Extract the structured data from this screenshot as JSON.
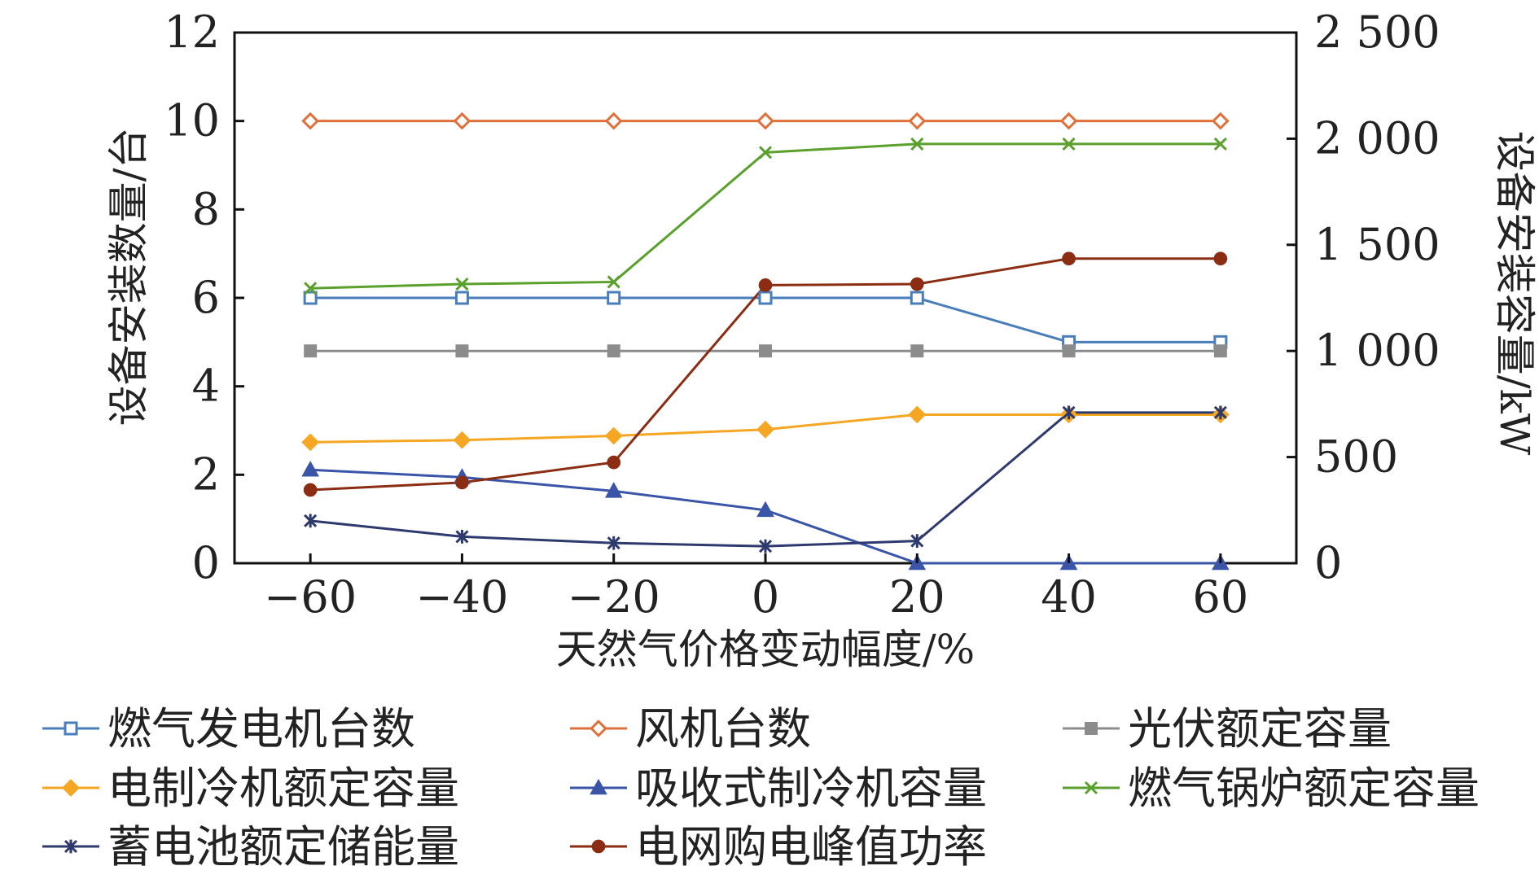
{
  "chart_data": {
    "type": "line",
    "xlabel": "天然气价格变动幅度/%",
    "ylabel_left": "设备安装数量/台",
    "ylabel_right": "设备安装容量/kW",
    "x": [
      -60,
      -40,
      -20,
      0,
      20,
      40,
      60
    ],
    "x_tick_labels": [
      "−60",
      "−40",
      "−20",
      "0",
      "20",
      "40",
      "60"
    ],
    "xlim": [
      -70,
      70
    ],
    "ylim_left": [
      0,
      12
    ],
    "y_left_ticks": [
      "0",
      "2",
      "4",
      "6",
      "8",
      "10",
      "12"
    ],
    "ylim_right": [
      0,
      2500
    ],
    "y_right_ticks": [
      "0",
      "500",
      "1 000",
      "1 500",
      "2 000",
      "2 500"
    ],
    "legend_position": "bottom",
    "series": [
      {
        "name": "燃气发电机台数",
        "axis": "left",
        "color": "#4a7ebb",
        "marker": "square-open",
        "values": [
          6,
          6,
          6,
          6,
          6,
          5,
          5
        ]
      },
      {
        "name": "风机台数",
        "axis": "left",
        "color": "#e0703a",
        "marker": "diamond-open",
        "values": [
          10,
          10,
          10,
          10,
          10,
          10,
          10
        ]
      },
      {
        "name": "光伏额定容量",
        "axis": "right",
        "color": "#8c8c8c",
        "marker": "square-filled",
        "values": [
          1000,
          1000,
          1000,
          1000,
          1000,
          1000,
          1000
        ]
      },
      {
        "name": "电制冷机额定容量",
        "axis": "right",
        "color": "#f5a623",
        "marker": "diamond-filled",
        "values": [
          570,
          580,
          600,
          630,
          700,
          700,
          700
        ]
      },
      {
        "name": "吸收式制冷机容量",
        "axis": "right",
        "color": "#3a55a8",
        "marker": "triangle-filled",
        "values": [
          440,
          405,
          340,
          250,
          0,
          0,
          0
        ]
      },
      {
        "name": "燃气锅炉额定容量",
        "axis": "right",
        "color": "#5aa02c",
        "marker": "x",
        "values": [
          1295,
          1315,
          1325,
          1935,
          1975,
          1975,
          1975
        ]
      },
      {
        "name": "蓄电池额定储能量",
        "axis": "right",
        "color": "#2e3a6e",
        "marker": "star",
        "values": [
          200,
          125,
          95,
          80,
          105,
          710,
          710
        ]
      },
      {
        "name": "电网购电峰值功率",
        "axis": "right",
        "color": "#8b2d12",
        "marker": "circle-filled",
        "values": [
          345,
          380,
          475,
          1310,
          1315,
          1435,
          1435
        ]
      }
    ]
  }
}
